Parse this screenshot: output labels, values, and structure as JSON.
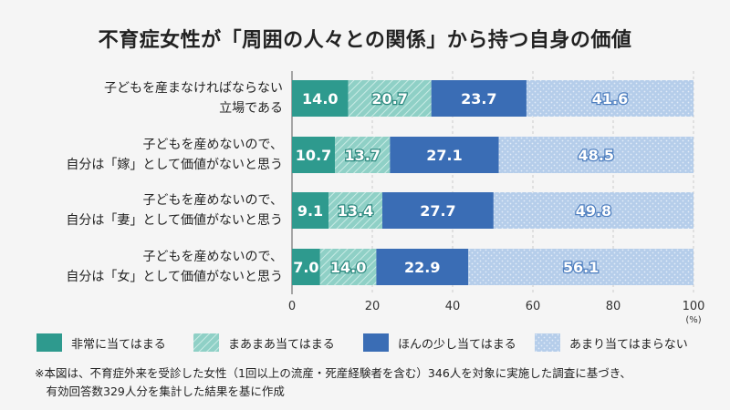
{
  "chart_data": {
    "type": "bar",
    "orientation": "horizontal",
    "stacked": true,
    "title": "不育症女性が「周囲の人々との関係」から持つ自身の価値",
    "categories": [
      "子どもを産まなければならない\n立場である",
      "子どもを産めないので、\n自分は「嫁」として価値がないと思う",
      "子どもを産めないので、\n自分は「妻」として価値がないと思う",
      "子どもを産めないので、\n自分は「女」として価値がないと思う"
    ],
    "series": [
      {
        "name": "非常に当てはまる",
        "values": [
          14.0,
          10.7,
          9.1,
          7.0
        ],
        "color": "#2e9a8e",
        "pattern": "solid"
      },
      {
        "name": "まあまあ当てはまる",
        "values": [
          20.7,
          13.7,
          13.4,
          14.0
        ],
        "color": "#8fd0c6",
        "pattern": "hatch"
      },
      {
        "name": "ほんの少し当てはまる",
        "values": [
          23.7,
          27.1,
          27.7,
          22.9
        ],
        "color": "#3a6db5",
        "pattern": "solid"
      },
      {
        "name": "あまり当てはまらない",
        "values": [
          41.6,
          48.5,
          49.8,
          56.1
        ],
        "color": "#b5cdea",
        "pattern": "dots"
      }
    ],
    "xlim": [
      0,
      100
    ],
    "xticks": [
      "0",
      "20",
      "40",
      "60",
      "80",
      "100"
    ],
    "xunit": "(%)",
    "grid": true,
    "legend": "bottom"
  },
  "note": "※本図は、不育症外来を受診した女性（1回以上の流産・死産経験者を含む）346人を対象に実施した調査に基づき、\n　有効回答数329人分を集計した結果を基に作成"
}
